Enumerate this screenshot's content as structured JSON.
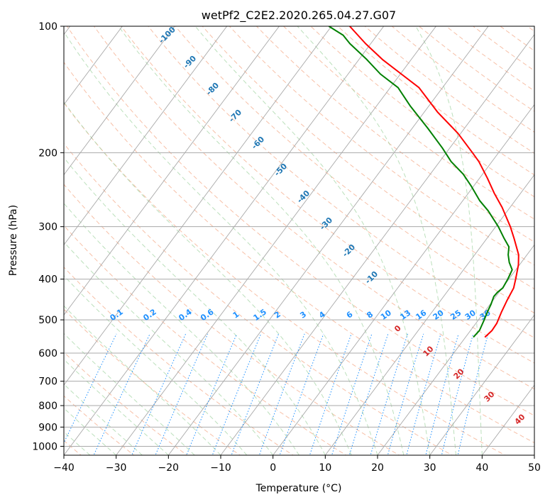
{
  "chart_data": {
    "type": "skew-t",
    "title": "wetPf2_C2E2.2020.265.04.27.G07",
    "xlabel": "Temperature (°C)",
    "ylabel": "Pressure (hPa)",
    "xlim": [
      -40,
      50
    ],
    "ylim": [
      1050,
      100
    ],
    "x_ticks": [
      -40,
      -30,
      -20,
      -10,
      0,
      10,
      20,
      30,
      40,
      50
    ],
    "x_tick_labels": [
      "−40",
      "−30",
      "−20",
      "−10",
      "0",
      "10",
      "20",
      "30",
      "40",
      "50"
    ],
    "y_ticks": [
      100,
      200,
      300,
      400,
      500,
      600,
      700,
      800,
      900,
      1000
    ],
    "y_tick_labels": [
      "100",
      "200",
      "300",
      "400",
      "500",
      "600",
      "700",
      "800",
      "900",
      "1000"
    ],
    "isotherm_labels": [
      {
        "temp": -100,
        "text": "-100"
      },
      {
        "temp": -90,
        "text": "-90"
      },
      {
        "temp": -80,
        "text": "-80"
      },
      {
        "temp": -70,
        "text": "-70"
      },
      {
        "temp": -60,
        "text": "-60"
      },
      {
        "temp": -50,
        "text": "-50"
      },
      {
        "temp": -40,
        "text": "-40"
      },
      {
        "temp": -30,
        "text": "-30"
      },
      {
        "temp": -20,
        "text": "-20"
      },
      {
        "temp": -10,
        "text": "-10"
      }
    ],
    "mixing_ratio_labels": [
      "0.1",
      "0.2",
      "0.4",
      "0.6",
      "1",
      "1.5",
      "2",
      "3",
      "4",
      "6",
      "8",
      "10",
      "13",
      "16",
      "20",
      "25",
      "30",
      "36"
    ],
    "theta_labels": [
      "0",
      "10",
      "20",
      "30",
      "40"
    ],
    "series": [
      {
        "name": "temperature",
        "color": "#ff0000",
        "points": [
          {
            "p": 550,
            "t": 23.7
          },
          {
            "p": 530,
            "t": 24.1
          },
          {
            "p": 510,
            "t": 24.0
          },
          {
            "p": 480,
            "t": 23.3
          },
          {
            "p": 450,
            "t": 22.7
          },
          {
            "p": 420,
            "t": 22.2
          },
          {
            "p": 400,
            "t": 21.3
          },
          {
            "p": 370,
            "t": 19.8
          },
          {
            "p": 350,
            "t": 18.4
          },
          {
            "p": 320,
            "t": 15.2
          },
          {
            "p": 300,
            "t": 12.8
          },
          {
            "p": 270,
            "t": 8.5
          },
          {
            "p": 250,
            "t": 5.0
          },
          {
            "p": 230,
            "t": 1.5
          },
          {
            "p": 210,
            "t": -2.5
          },
          {
            "p": 200,
            "t": -5.0
          },
          {
            "p": 180,
            "t": -10.5
          },
          {
            "p": 160,
            "t": -17.5
          },
          {
            "p": 140,
            "t": -24.5
          },
          {
            "p": 130,
            "t": -29.8
          },
          {
            "p": 120,
            "t": -35.5
          },
          {
            "p": 110,
            "t": -41.0
          },
          {
            "p": 100,
            "t": -46.5
          }
        ]
      },
      {
        "name": "dewpoint",
        "color": "#008000",
        "points": [
          {
            "p": 550,
            "t": 21.5
          },
          {
            "p": 530,
            "t": 21.7
          },
          {
            "p": 500,
            "t": 21.1
          },
          {
            "p": 480,
            "t": 20.6
          },
          {
            "p": 460,
            "t": 20.2
          },
          {
            "p": 440,
            "t": 19.6
          },
          {
            "p": 430,
            "t": 19.7
          },
          {
            "p": 420,
            "t": 20.1
          },
          {
            "p": 400,
            "t": 19.8
          },
          {
            "p": 380,
            "t": 19.3
          },
          {
            "p": 365,
            "t": 17.7
          },
          {
            "p": 350,
            "t": 16.4
          },
          {
            "p": 335,
            "t": 15.4
          },
          {
            "p": 320,
            "t": 13.3
          },
          {
            "p": 300,
            "t": 10.5
          },
          {
            "p": 275,
            "t": 6.3
          },
          {
            "p": 260,
            "t": 3.2
          },
          {
            "p": 240,
            "t": -0.5
          },
          {
            "p": 225,
            "t": -3.7
          },
          {
            "p": 210,
            "t": -7.8
          },
          {
            "p": 195,
            "t": -11.4
          },
          {
            "p": 175,
            "t": -17.0
          },
          {
            "p": 155,
            "t": -23.5
          },
          {
            "p": 140,
            "t": -28.5
          },
          {
            "p": 130,
            "t": -33.8
          },
          {
            "p": 120,
            "t": -38.5
          },
          {
            "p": 110,
            "t": -44.0
          },
          {
            "p": 105,
            "t": -46.5
          },
          {
            "p": 100,
            "t": -50.5
          }
        ]
      }
    ]
  }
}
